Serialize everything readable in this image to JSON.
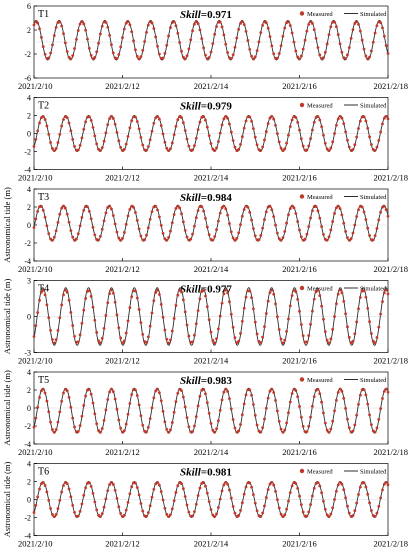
{
  "figure": {
    "x_tick_labels": [
      "2021/2/10",
      "2021/2/12",
      "2021/2/14",
      "2021/2/16",
      "2021/2/18"
    ],
    "y_axis_label": "Astronomical tide (m)",
    "legend": {
      "measured": "Measured",
      "simulated": "Simulated"
    },
    "skill_prefix": "Skill",
    "colors": {
      "measured": "#c0392b",
      "simulated": "#2d2d2d",
      "axis": "#000000"
    }
  },
  "chart_data": [
    {
      "type": "line",
      "panel_label": "T1",
      "skill_text": "=0.971",
      "skill": 0.971,
      "ylabel": "",
      "ylim": [
        -6,
        6
      ],
      "yticks": [
        "6",
        "2",
        "-2",
        "-6"
      ],
      "ytick_values": [
        6,
        2,
        -2,
        -6
      ],
      "xlim": [
        "2021/2/10",
        "2021/2/18"
      ],
      "legend_position": "top-right",
      "series": [
        {
          "name": "Measured",
          "style": "points",
          "mean": 0.3,
          "amplitude": 3.1,
          "period_days": 0.517,
          "phase_days": 0.05
        },
        {
          "name": "Simulated",
          "style": "line",
          "mean": 0.3,
          "amplitude": 3.3,
          "period_days": 0.517,
          "phase_days": 0.05
        }
      ]
    },
    {
      "type": "line",
      "panel_label": "T2",
      "skill_text": "=0.979",
      "skill": 0.979,
      "ylabel": "",
      "ylim": [
        -4,
        4
      ],
      "yticks": [
        "4",
        "2",
        "0",
        "-2",
        "-4"
      ],
      "ytick_values": [
        4,
        2,
        0,
        -2,
        -4
      ],
      "xlim": [
        "2021/2/10",
        "2021/2/18"
      ],
      "legend_position": "top-right",
      "series": [
        {
          "name": "Measured",
          "style": "points",
          "mean": 0.0,
          "amplitude": 1.9,
          "period_days": 0.517,
          "phase_days": 0.2
        },
        {
          "name": "Simulated",
          "style": "line",
          "mean": 0.0,
          "amplitude": 2.0,
          "period_days": 0.517,
          "phase_days": 0.2
        }
      ]
    },
    {
      "type": "line",
      "panel_label": "T3",
      "skill_text": "=0.984",
      "skill": 0.984,
      "ylabel": "Astronomical tide (m)",
      "ylim": [
        -4,
        4
      ],
      "yticks": [
        "4",
        "2",
        "0",
        "-2",
        "-4"
      ],
      "ytick_values": [
        4,
        2,
        0,
        -2,
        -4
      ],
      "xlim": [
        "2021/2/10",
        "2021/2/18"
      ],
      "legend_position": "top-right",
      "series": [
        {
          "name": "Measured",
          "style": "points",
          "mean": 0.2,
          "amplitude": 1.9,
          "period_days": 0.517,
          "phase_days": 0.15
        },
        {
          "name": "Simulated",
          "style": "line",
          "mean": 0.2,
          "amplitude": 2.0,
          "period_days": 0.517,
          "phase_days": 0.15
        }
      ]
    },
    {
      "type": "line",
      "panel_label": "T4",
      "skill_text": "=0.977",
      "skill": 0.977,
      "ylabel": "Astronomical tide (m)",
      "ylim": [
        -3,
        3
      ],
      "yticks": [
        "3",
        "0",
        "-3"
      ],
      "ytick_values": [
        3,
        0,
        -3
      ],
      "xlim": [
        "2021/2/10",
        "2021/2/18"
      ],
      "legend_position": "top-right",
      "series": [
        {
          "name": "Measured",
          "style": "points",
          "mean": 0.0,
          "amplitude": 2.2,
          "period_days": 0.517,
          "phase_days": 0.2
        },
        {
          "name": "Simulated",
          "style": "line",
          "mean": 0.0,
          "amplitude": 2.4,
          "period_days": 0.517,
          "phase_days": 0.2
        }
      ]
    },
    {
      "type": "line",
      "panel_label": "T5",
      "skill_text": "=0.983",
      "skill": 0.983,
      "ylabel": "Astronomical tide (m)",
      "ylim": [
        -4,
        4
      ],
      "yticks": [
        "4",
        "2",
        "0",
        "-2",
        "-4"
      ],
      "ytick_values": [
        4,
        2,
        0,
        -2,
        -4
      ],
      "xlim": [
        "2021/2/10",
        "2021/2/18"
      ],
      "legend_position": "top-right",
      "series": [
        {
          "name": "Measured",
          "style": "points",
          "mean": -0.3,
          "amplitude": 2.4,
          "period_days": 0.517,
          "phase_days": 0.2
        },
        {
          "name": "Simulated",
          "style": "line",
          "mean": -0.3,
          "amplitude": 2.5,
          "period_days": 0.517,
          "phase_days": 0.2
        }
      ]
    },
    {
      "type": "line",
      "panel_label": "T6",
      "skill_text": "=0.981",
      "skill": 0.981,
      "ylabel": "Astronomical tide (m)",
      "ylim": [
        -4,
        4
      ],
      "yticks": [
        "4",
        "2",
        "0",
        "-2",
        "-4"
      ],
      "ytick_values": [
        4,
        2,
        0,
        -2,
        -4
      ],
      "xlim": [
        "2021/2/10",
        "2021/2/18"
      ],
      "legend_position": "top-right",
      "series": [
        {
          "name": "Measured",
          "style": "points",
          "mean": 0.0,
          "amplitude": 1.9,
          "period_days": 0.517,
          "phase_days": 0.2
        },
        {
          "name": "Simulated",
          "style": "line",
          "mean": 0.0,
          "amplitude": 2.0,
          "period_days": 0.517,
          "phase_days": 0.2
        }
      ]
    }
  ]
}
